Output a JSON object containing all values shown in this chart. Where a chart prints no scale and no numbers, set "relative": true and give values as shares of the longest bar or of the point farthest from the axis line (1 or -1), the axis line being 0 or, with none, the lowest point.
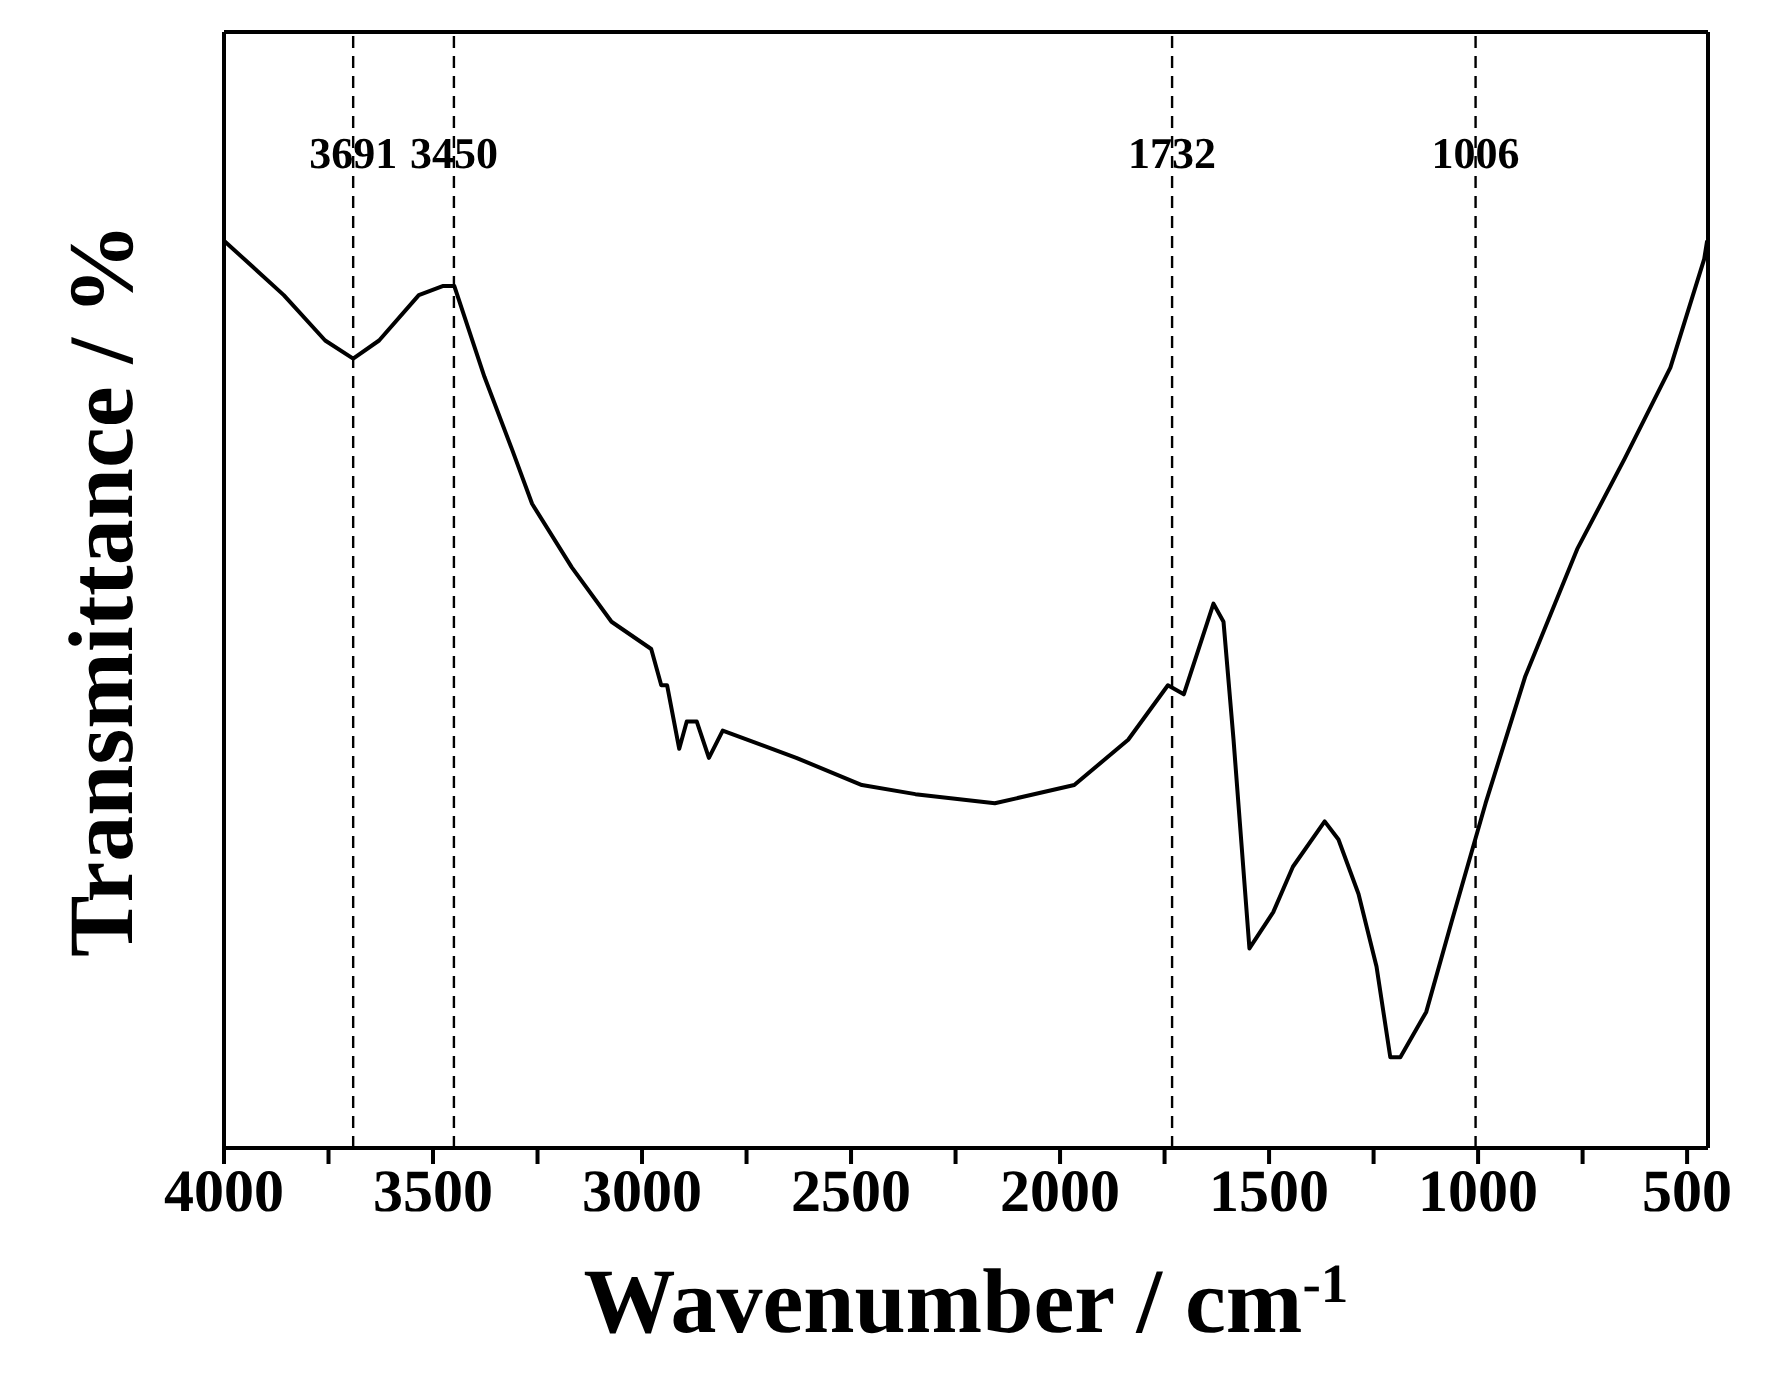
{
  "chart_data": {
    "type": "line",
    "relative": true,
    "xlabel": "Wavenumber / cm$^{-1}$",
    "ylabel": "Transmittance / %",
    "x": [
      4000,
      3857,
      3758,
      3691,
      3629,
      3534,
      3477,
      3449,
      3377,
      3311,
      3263,
      3168,
      3073,
      2978,
      2954,
      2940,
      2911,
      2893,
      2869,
      2840,
      2807,
      2631,
      2474,
      2346,
      2156,
      1966,
      1837,
      1742,
      1704,
      1633,
      1609,
      1585,
      1547,
      1490,
      1443,
      1367,
      1334,
      1286,
      1243,
      1210,
      1186,
      1124,
      1063,
      982,
      887,
      763,
      649,
      540,
      459,
      452
    ],
    "series": [
      {
        "color": "#000000",
        "values": [
          1.0,
          0.94,
          0.89,
          0.87,
          0.89,
          0.94,
          0.95,
          0.95,
          0.85,
          0.77,
          0.71,
          0.64,
          0.58,
          0.55,
          0.51,
          0.51,
          0.44,
          0.47,
          0.47,
          0.43,
          0.46,
          0.43,
          0.4,
          0.39,
          0.38,
          0.4,
          0.45,
          0.51,
          0.5,
          0.6,
          0.58,
          0.45,
          0.22,
          0.26,
          0.31,
          0.36,
          0.34,
          0.28,
          0.2,
          0.1,
          0.1,
          0.15,
          0.25,
          0.38,
          0.52,
          0.66,
          0.76,
          0.86,
          0.98,
          1.0
        ]
      }
    ],
    "xlim": [
      4000,
      450
    ],
    "xticks": [
      4000,
      {
        "value": 3750,
        "label": null
      },
      3500,
      {
        "value": 3250,
        "label": null
      },
      3000,
      {
        "value": 2750,
        "label": null
      },
      2500,
      {
        "value": 2250,
        "label": null
      },
      2000,
      {
        "value": 1750,
        "label": null
      },
      1500,
      {
        "value": 1250,
        "label": null
      },
      1000,
      {
        "value": 750,
        "label": null
      },
      500
    ],
    "ref_lines": [
      {
        "axis": "x",
        "value": 3691,
        "label": "3691",
        "color": "#000000",
        "line_style": "dashed"
      },
      {
        "axis": "x",
        "value": 3450,
        "label": "3450",
        "color": "#000000",
        "line_style": "dashed"
      },
      {
        "axis": "x",
        "value": 1732,
        "label": "1732",
        "color": "#000000",
        "line_style": "dashed"
      },
      {
        "axis": "x",
        "value": 1006,
        "label": "1006",
        "color": "#000000",
        "line_style": "dashed"
      }
    ],
    "marker": "none",
    "line_style": "solid",
    "grid": false,
    "legend": false
  }
}
